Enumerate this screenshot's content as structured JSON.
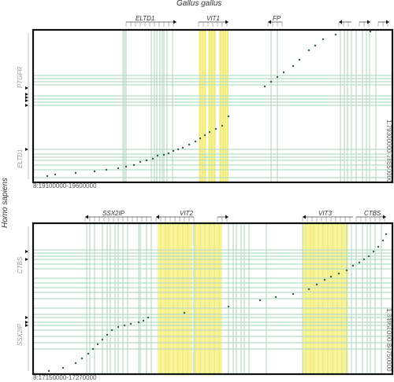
{
  "title_top": "Gallus gallus",
  "title_left": "Homo sapiens",
  "panels": [
    {
      "genes_top": [
        "ELTD1",
        "VIT1",
        "FP"
      ],
      "genes_left": [
        "PTGFR",
        "ELTD1"
      ],
      "x_range": "8:19100000-19600000",
      "y_range": "1:79300000-78550000"
    },
    {
      "genes_top": [
        "SSX2IP",
        "VIT2",
        "VIT3",
        "CTBS"
      ],
      "genes_left": [
        "CTBS",
        "SSX2IP"
      ],
      "x_range": "8:17150000-17270000",
      "y_range": "1:84950000-84750000"
    }
  ],
  "colors": {
    "frame": "#111111",
    "gene_band": "#b9dcc6",
    "vit_band": "#f7f07a",
    "dots": "#2f5f55"
  }
}
